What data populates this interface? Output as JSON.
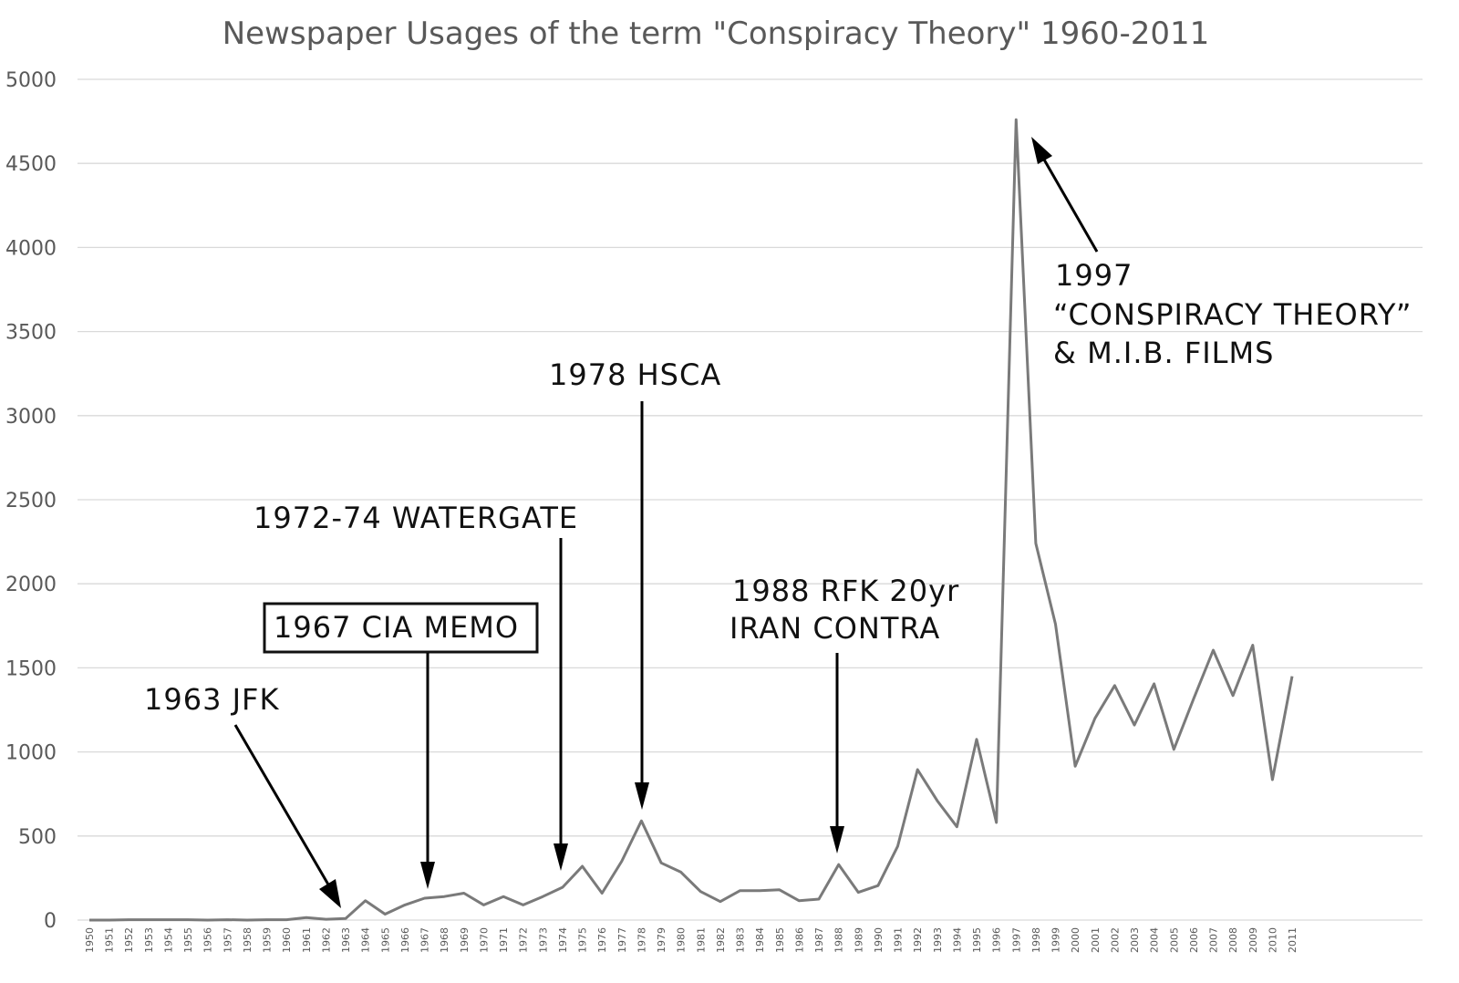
{
  "chart_data": {
    "type": "line",
    "title": "Newspaper Usages of the term \"Conspiracy Theory\" 1960-2011",
    "xlabel": "",
    "ylabel": "",
    "ylim": [
      0,
      5000
    ],
    "yticks": [
      0,
      500,
      1000,
      1500,
      2000,
      2500,
      3000,
      3500,
      4000,
      4500,
      5000
    ],
    "grid": true,
    "x": [
      1950,
      1951,
      1952,
      1953,
      1954,
      1955,
      1956,
      1957,
      1958,
      1959,
      1960,
      1961,
      1962,
      1963,
      1964,
      1965,
      1966,
      1967,
      1968,
      1969,
      1970,
      1971,
      1972,
      1973,
      1974,
      1975,
      1976,
      1977,
      1978,
      1979,
      1980,
      1981,
      1982,
      1983,
      1984,
      1985,
      1986,
      1987,
      1988,
      1989,
      1990,
      1991,
      1992,
      1993,
      1994,
      1995,
      1996,
      1997,
      1998,
      1999,
      2000,
      2001,
      2002,
      2003,
      2004,
      2005,
      2006,
      2007,
      2008,
      2009,
      2010,
      2011
    ],
    "series": [
      {
        "name": "Newspaper usages",
        "values": [
          0,
          0,
          2,
          2,
          2,
          2,
          0,
          2,
          0,
          2,
          2,
          15,
          5,
          10,
          115,
          35,
          90,
          130,
          140,
          160,
          90,
          140,
          90,
          140,
          195,
          320,
          160,
          350,
          590,
          340,
          285,
          170,
          110,
          175,
          175,
          180,
          115,
          125,
          330,
          165,
          205,
          440,
          895,
          710,
          555,
          1075,
          580,
          4760,
          2240,
          1760,
          915,
          1200,
          1395,
          1160,
          1405,
          1015,
          1315,
          1605,
          1335,
          1635,
          835,
          1450
        ]
      }
    ],
    "annotations": [
      {
        "id": "jfk",
        "lines": [
          "1963 JFK"
        ],
        "year": 1963
      },
      {
        "id": "cia",
        "lines": [
          "1967 CIA MEMO"
        ],
        "year": 1967,
        "boxed": true
      },
      {
        "id": "watergate",
        "lines": [
          "1972-74 WATERGATE"
        ],
        "year": 1974
      },
      {
        "id": "hsca",
        "lines": [
          "1978 HSCA"
        ],
        "year": 1978
      },
      {
        "id": "rfk",
        "lines": [
          "1988 RFK 20yr",
          "IRAN CONTRA"
        ],
        "year": 1988
      },
      {
        "id": "films",
        "lines": [
          "1997",
          "“CONSPIRACY THEORY”",
          "& M.I.B. FILMS"
        ],
        "year": 1997
      }
    ]
  }
}
